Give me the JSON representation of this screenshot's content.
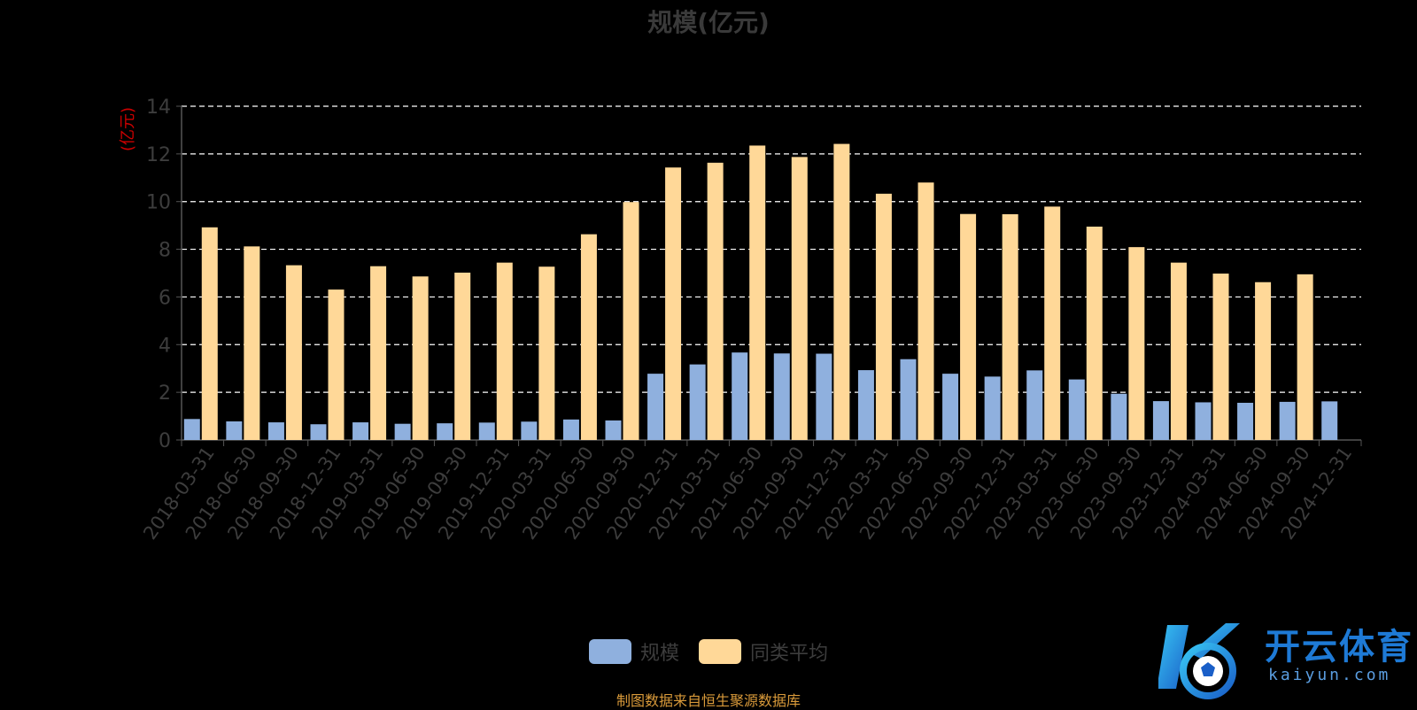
{
  "title": "规模(亿元)",
  "source": "制图数据来自恒生聚源数据库",
  "logo": {
    "text": "开云体育",
    "sub": "kaiyun.com",
    "icon": "kaiyun-logo-icon"
  },
  "colors": {
    "series1": "#8fb0de",
    "series2": "#ffd898",
    "unit_label": "#cc0000",
    "axis_text": "#3d3d3d",
    "grid": "#ffffff"
  },
  "chart_data": {
    "type": "bar",
    "ylabel": "(亿元)",
    "ylim": [
      0,
      14
    ],
    "yticks": [
      0,
      2,
      4,
      6,
      8,
      10,
      12,
      14
    ],
    "grid": "dashed horizontal",
    "legend_position": "bottom-center",
    "categories": [
      "2018-03-31",
      "2018-06-30",
      "2018-09-30",
      "2018-12-31",
      "2019-03-31",
      "2019-06-30",
      "2019-09-30",
      "2019-12-31",
      "2020-03-31",
      "2020-06-30",
      "2020-09-30",
      "2020-12-31",
      "2021-03-31",
      "2021-06-30",
      "2021-09-30",
      "2021-12-31",
      "2022-03-31",
      "2022-06-30",
      "2022-09-30",
      "2022-12-31",
      "2023-03-31",
      "2023-06-30",
      "2023-09-30",
      "2023-12-31",
      "2024-03-31",
      "2024-06-30",
      "2024-09-30",
      "2024-12-31"
    ],
    "series": [
      {
        "name": "规模",
        "values": [
          0.88,
          0.78,
          0.74,
          0.66,
          0.74,
          0.68,
          0.7,
          0.73,
          0.77,
          0.86,
          0.82,
          2.78,
          3.17,
          3.67,
          3.63,
          3.62,
          2.93,
          3.39,
          2.78,
          2.66,
          2.92,
          2.54,
          1.94,
          1.63,
          1.58,
          1.56,
          1.6,
          1.62
        ]
      },
      {
        "name": "同类平均",
        "values": [
          8.92,
          8.12,
          7.33,
          6.31,
          7.29,
          6.86,
          7.02,
          7.44,
          7.27,
          8.63,
          9.98,
          11.43,
          11.63,
          12.35,
          11.87,
          12.42,
          10.33,
          10.8,
          9.48,
          9.47,
          9.79,
          8.95,
          8.09,
          7.44,
          6.98,
          6.62,
          6.95,
          null
        ]
      }
    ]
  }
}
